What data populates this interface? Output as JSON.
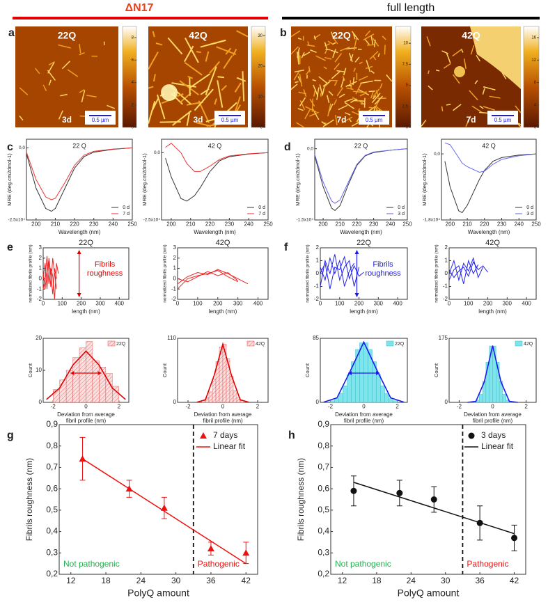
{
  "headers": [
    "ΔN17",
    "full length"
  ],
  "panel_letters": [
    "a",
    "b",
    "c",
    "d",
    "e",
    "f",
    "g",
    "h"
  ],
  "afm": [
    {
      "label": "22Q",
      "time": "3d",
      "scale": "0.5 µm",
      "colorbar_lim": [
        0,
        9
      ],
      "colorbar_ticks": [
        0,
        2,
        4,
        6,
        8
      ]
    },
    {
      "label": "42Q",
      "time": "3d",
      "scale": "0.5 µm",
      "colorbar_lim": [
        0,
        33
      ],
      "colorbar_ticks": [
        0,
        10,
        20,
        30
      ]
    },
    {
      "label": "22Q",
      "time": "7d",
      "scale": "0.5 µm",
      "colorbar_lim": [
        0,
        12
      ],
      "colorbar_ticks": [
        0,
        2.5,
        5,
        7.5,
        10
      ]
    },
    {
      "label": "42Q",
      "time": "7d",
      "scale": "0.5 µm",
      "colorbar_lim": [
        0,
        18
      ],
      "colorbar_ticks": [
        0,
        4,
        8,
        12,
        16
      ]
    }
  ],
  "chart_data": [
    {
      "type": "line",
      "title": "22 Q",
      "xlabel": "Wavelength (nm)",
      "ylabel": "MRE (deg.cm2dmol-1)",
      "x": [
        195,
        200,
        205,
        208,
        210,
        215,
        220,
        225,
        230,
        240,
        250
      ],
      "xlim": [
        195,
        250
      ],
      "xticks": [
        200,
        210,
        220,
        230,
        240,
        250
      ],
      "ylim": [
        -25000,
        3000
      ],
      "yticks": [
        {
          "value": 0,
          "label": "0,0"
        },
        {
          "value": -25000,
          "label": "-2,5x10⁴"
        }
      ],
      "series": [
        {
          "name": "0 d",
          "color": "#333333",
          "values": [
            -2000,
            -14000,
            -21000,
            -22000,
            -21000,
            -14000,
            -7000,
            -3000,
            -1500,
            -500,
            0
          ]
        },
        {
          "name": "7 d",
          "color": "#ee3333",
          "values": [
            -1500,
            -11000,
            -17000,
            -18000,
            -17500,
            -12000,
            -6000,
            -2500,
            -1200,
            -400,
            0
          ]
        }
      ]
    },
    {
      "type": "line",
      "title": "42 Q",
      "xlabel": "Wavelength (nm)",
      "ylabel": "MRE (deg.cm2dmol-1)",
      "x": [
        197,
        200,
        205,
        208,
        212,
        215,
        220,
        225,
        230,
        240,
        250
      ],
      "xlim": [
        195,
        250
      ],
      "xticks": [
        200,
        210,
        220,
        230,
        240,
        250
      ],
      "ylim": [
        -25000,
        5000
      ],
      "yticks": [
        {
          "value": 0,
          "label": "0,0"
        },
        {
          "value": -25000,
          "label": "-2,5x10⁴"
        }
      ],
      "series": [
        {
          "name": "0 d",
          "color": "#333333",
          "values": [
            -2000,
            -9000,
            -17000,
            -18000,
            -16000,
            -13000,
            -7000,
            -3000,
            -1500,
            -500,
            0
          ]
        },
        {
          "name": "7 d",
          "color": "#ee3333",
          "values": [
            2000,
            3500,
            0,
            -4000,
            -7000,
            -7000,
            -5000,
            -2500,
            -1200,
            -400,
            0
          ]
        }
      ]
    },
    {
      "type": "line",
      "title": "22 Q",
      "xlabel": "Wavelength (nm)",
      "ylabel": "MRE (deg.cm2dmol-1)",
      "x": [
        195,
        200,
        205,
        207,
        210,
        215,
        220,
        225,
        230,
        240,
        250
      ],
      "xlim": [
        195,
        250
      ],
      "xticks": [
        200,
        210,
        220,
        230,
        240,
        250
      ],
      "ylim": [
        -15000,
        2000
      ],
      "yticks": [
        {
          "value": 0,
          "label": "0,0"
        },
        {
          "value": -15000,
          "label": "-1,5x10⁴"
        }
      ],
      "series": [
        {
          "name": "0 d",
          "color": "#333333",
          "values": [
            -1500,
            -8000,
            -12500,
            -13000,
            -12000,
            -7500,
            -3500,
            -1500,
            -800,
            -300,
            0
          ]
        },
        {
          "name": "3 d",
          "color": "#6666ee",
          "values": [
            -1200,
            -7000,
            -11000,
            -11500,
            -10800,
            -7000,
            -3300,
            -1400,
            -700,
            -300,
            0
          ]
        }
      ]
    },
    {
      "type": "line",
      "title": "42 Q",
      "xlabel": "Wavelength (nm)",
      "ylabel": "MRE (deg.cm2dmol-1)",
      "x": [
        197,
        200,
        205,
        207,
        210,
        217,
        220,
        225,
        230,
        240,
        250
      ],
      "xlim": [
        195,
        250
      ],
      "xticks": [
        200,
        210,
        220,
        230,
        240,
        250
      ],
      "ylim": [
        -18000,
        4000
      ],
      "yticks": [
        {
          "value": 0,
          "label": "0,0"
        },
        {
          "value": -18000,
          "label": "-1,8x10⁴"
        }
      ],
      "series": [
        {
          "name": "0 d",
          "color": "#333333",
          "values": [
            -2000,
            -9000,
            -15500,
            -16000,
            -14000,
            -7000,
            -4500,
            -2000,
            -1000,
            -300,
            0
          ]
        },
        {
          "name": "3 d",
          "color": "#6666ee",
          "values": [
            3000,
            2500,
            -1000,
            -2500,
            -3500,
            -5000,
            -4700,
            -2800,
            -1500,
            -500,
            0
          ]
        }
      ]
    },
    {
      "type": "line",
      "title": "22Q",
      "xlabel": "length (nm)",
      "ylabel": "normalized fibrils profile (nm)",
      "annotation": [
        "Fibrils",
        "roughness"
      ],
      "annotation_color": "#e00000",
      "x": [
        0,
        10,
        20,
        30,
        40,
        50,
        60,
        70,
        80
      ],
      "xlim": [
        0,
        450
      ],
      "xticks": [
        0,
        100,
        200,
        300,
        400
      ],
      "ylim": [
        -2,
        3
      ],
      "yticks": [
        -2,
        -1,
        0,
        1,
        2,
        3
      ],
      "series": [
        {
          "color": "#ee2222",
          "values": [
            0,
            1.5,
            -1,
            2,
            0.5,
            -1.5,
            1,
            0,
            null
          ]
        },
        {
          "color": "#ee2222",
          "values": [
            -1,
            0,
            2.2,
            -0.5,
            1,
            0.3,
            -2,
            1.5,
            0.5
          ]
        },
        {
          "color": "#ee2222",
          "values": [
            0.5,
            -1,
            0.8,
            1.8,
            -0.8,
            2,
            0.5,
            -1,
            null
          ]
        }
      ]
    },
    {
      "type": "line",
      "title": "42Q",
      "xlabel": "length (nm)",
      "ylabel": "normalized fibrils profile (nm)",
      "x": [
        0,
        50,
        100,
        150,
        200,
        250,
        300,
        350
      ],
      "xlim": [
        0,
        450
      ],
      "xticks": [
        0,
        100,
        200,
        300,
        400
      ],
      "ylim": [
        -2,
        3
      ],
      "yticks": [
        -2,
        -1,
        0,
        1,
        2,
        3
      ],
      "series": [
        {
          "color": "#ee2222",
          "values": [
            -1,
            0,
            0.3,
            0.5,
            0.8,
            0.2,
            -0.3,
            null
          ]
        },
        {
          "color": "#ee2222",
          "values": [
            -0.5,
            0.2,
            0.6,
            0.4,
            0.9,
            0.5,
            0,
            -0.5
          ]
        },
        {
          "color": "#ee2222",
          "values": [
            0,
            -0.3,
            0.2,
            0.7,
            0.3,
            0.6,
            -0.2,
            null
          ]
        }
      ]
    },
    {
      "type": "line",
      "title": "22Q",
      "xlabel": "length (nm)",
      "ylabel": "normalized fibrils profile (nm)",
      "annotation": [
        "Fibrils",
        "roughness"
      ],
      "annotation_color": "#1a1aee",
      "x": [
        0,
        25,
        50,
        75,
        100,
        125,
        150,
        175,
        200,
        225
      ],
      "xlim": [
        0,
        450
      ],
      "xticks": [
        0,
        100,
        200,
        300,
        400
      ],
      "ylim": [
        -2,
        2
      ],
      "yticks": [
        -2,
        -1,
        0,
        1,
        2
      ],
      "series": [
        {
          "color": "#2222ee",
          "values": [
            -1,
            1,
            0,
            1.5,
            -0.5,
            0.5,
            1,
            -1,
            0.5,
            null
          ]
        },
        {
          "color": "#2222ee",
          "values": [
            0.5,
            -0.5,
            1.2,
            0,
            1,
            -1,
            0.2,
            0.8,
            null,
            null
          ]
        },
        {
          "color": "#2222ee",
          "values": [
            0,
            0.8,
            -1.2,
            0.5,
            0.3,
            1.3,
            -0.4,
            0.6,
            -0.2,
            0.1
          ]
        }
      ]
    },
    {
      "type": "line",
      "title": "42Q",
      "xlabel": "length (nm)",
      "ylabel": "normalized fibrils profile (nm)",
      "x": [
        0,
        25,
        50,
        75,
        100,
        125,
        150,
        175,
        200
      ],
      "xlim": [
        0,
        450
      ],
      "xticks": [
        0,
        100,
        200,
        300,
        400
      ],
      "ylim": [
        -2,
        2
      ],
      "yticks": [
        -2,
        -1,
        0,
        1,
        2
      ],
      "series": [
        {
          "color": "#2222ee",
          "values": [
            0,
            1,
            -0.5,
            0.8,
            0.2,
            1.2,
            -0.3,
            0.5,
            null
          ]
        },
        {
          "color": "#2222ee",
          "values": [
            -0.5,
            0.3,
            0.6,
            -0.8,
            1,
            0,
            0.7,
            null,
            null
          ]
        },
        {
          "color": "#2222ee",
          "values": [
            0.3,
            -0.3,
            0.2,
            0.5,
            -0.2,
            0.9,
            0.3,
            0.6,
            0.1
          ]
        }
      ]
    },
    {
      "type": "histogram",
      "name": "22Q",
      "xlabel": [
        "Deviation from average",
        "fibril profile (nm)"
      ],
      "ylabel": "Count",
      "color": "#f6c0c0",
      "edge": "#e04040",
      "fit_color": "#e00000",
      "bins": [
        -2,
        -1.6,
        -1.2,
        -0.8,
        -0.4,
        0,
        0.4,
        0.8,
        1.2,
        1.6,
        2
      ],
      "counts": [
        4,
        7,
        10,
        14,
        17,
        19,
        13,
        11,
        9,
        5
      ],
      "fit": {
        "x": [
          -2.4,
          -1.6,
          -0.8,
          0,
          0.8,
          1.6,
          2.4
        ],
        "values": [
          0.9,
          4.5,
          11.6,
          16,
          11.6,
          4.5,
          0.9
        ]
      },
      "xlim": [
        -2.6,
        2.6
      ],
      "xticks": [
        -2,
        0,
        2
      ],
      "ylim": [
        0,
        20
      ],
      "yticks": [
        0,
        10,
        20
      ]
    },
    {
      "type": "histogram",
      "name": "42Q",
      "xlabel": [
        "Deviation from average",
        "fibril profile (nm)"
      ],
      "ylabel": "Count",
      "color": "#f6c0c0",
      "edge": "#e04040",
      "fit_color": "#e00000",
      "bins": [
        -1.2,
        -1,
        -0.8,
        -0.6,
        -0.4,
        -0.2,
        0,
        0.2,
        0.4,
        0.6,
        0.8,
        1,
        1.2
      ],
      "counts": [
        3,
        8,
        18,
        40,
        70,
        95,
        100,
        75,
        45,
        20,
        8,
        3
      ],
      "fit": {
        "x": [
          -1.5,
          -1,
          -0.5,
          0,
          0.5,
          1,
          1.5
        ],
        "values": [
          0.1,
          4.4,
          46,
          100,
          46,
          4.4,
          0.1
        ]
      },
      "xlim": [
        -2.6,
        2.6
      ],
      "xticks": [
        -2,
        0,
        2
      ],
      "ylim": [
        0,
        110
      ],
      "yticks": [
        0,
        110
      ]
    },
    {
      "type": "histogram",
      "name": "22Q",
      "xlabel": [
        "Deviation from average",
        "fibril profile (nm)"
      ],
      "ylabel": "Count",
      "color": "#80e4ea",
      "edge": "#30b8c8",
      "fit_color": "#1a1aee",
      "bins": [
        -2,
        -1.75,
        -1.5,
        -1.25,
        -1,
        -0.75,
        -0.5,
        -0.25,
        0,
        0.25,
        0.5,
        0.75,
        1,
        1.25,
        1.5,
        1.75,
        2
      ],
      "counts": [
        2,
        5,
        12,
        22,
        37,
        54,
        70,
        79,
        79,
        70,
        54,
        37,
        22,
        12,
        5,
        2
      ],
      "fit": {
        "x": [
          -2.4,
          -1.6,
          -0.8,
          0,
          0.8,
          1.6,
          2.4
        ],
        "values": [
          0.2,
          6,
          42,
          80,
          42,
          6,
          0.2
        ]
      },
      "xlim": [
        -2.6,
        2.6
      ],
      "xticks": [
        -2,
        0,
        2
      ],
      "ylim": [
        0,
        85
      ],
      "yticks": [
        0,
        85
      ]
    },
    {
      "type": "histogram",
      "name": "42Q",
      "xlabel": [
        "Deviation from average",
        "fibril profile (nm)"
      ],
      "ylabel": "Count",
      "color": "#80e4ea",
      "edge": "#30b8c8",
      "fit_color": "#1a1aee",
      "bins": [
        -1.2,
        -1,
        -0.8,
        -0.6,
        -0.4,
        -0.2,
        0,
        0.2,
        0.4,
        0.6,
        0.8,
        1,
        1.2
      ],
      "counts": [
        1,
        6,
        22,
        58,
        110,
        154,
        154,
        110,
        58,
        22,
        6,
        1
      ],
      "fit": {
        "x": [
          -1.5,
          -1,
          -0.5,
          0,
          0.5,
          1,
          1.5
        ],
        "values": [
          0,
          2.6,
          56,
          155,
          56,
          2.6,
          0
        ]
      },
      "xlim": [
        -2.6,
        2.6
      ],
      "xticks": [
        -2,
        0,
        2
      ],
      "ylim": [
        0,
        175
      ],
      "yticks": [
        0,
        175
      ]
    },
    {
      "type": "scatter",
      "xlabel": "PolyQ amount",
      "ylabel": "Fibrils roughness (nm)",
      "x": [
        14,
        22,
        28,
        36,
        42
      ],
      "xlim": [
        10,
        44
      ],
      "xticks": [
        12,
        18,
        24,
        30,
        36,
        42
      ],
      "ylim": [
        0.2,
        0.9
      ],
      "yticks": [
        {
          "value": 0.2,
          "label": "0,2"
        },
        {
          "value": 0.3,
          "label": "0,3"
        },
        {
          "value": 0.4,
          "label": "0,4"
        },
        {
          "value": 0.5,
          "label": "0,5"
        },
        {
          "value": 0.6,
          "label": "0,6"
        },
        {
          "value": 0.7,
          "label": "0,7"
        },
        {
          "value": 0.8,
          "label": "0,8"
        },
        {
          "value": 0.9,
          "label": "0,9"
        }
      ],
      "series": [
        {
          "name": "7 days",
          "color": "#ee1111",
          "marker": "triangle",
          "values": [
            0.74,
            0.6,
            0.51,
            0.32,
            0.3
          ],
          "errors": [
            0.1,
            0.04,
            0.05,
            0.03,
            0.05
          ]
        }
      ],
      "fit": {
        "name": "Linear fit",
        "color": "#ee1111",
        "x": [
          14,
          42
        ],
        "values": [
          0.74,
          0.25
        ]
      },
      "threshold": 33,
      "annotations": [
        {
          "text": "Not pathogenic",
          "color": "#22b14c"
        },
        {
          "text": "Pathogenic",
          "color": "#ee1111"
        }
      ]
    },
    {
      "type": "scatter",
      "xlabel": "PolyQ amount",
      "ylabel": "Fibrils roughness (nm)",
      "x": [
        14,
        22,
        28,
        36,
        42
      ],
      "xlim": [
        10,
        44
      ],
      "xticks": [
        12,
        18,
        24,
        30,
        36,
        42
      ],
      "ylim": [
        0.2,
        0.9
      ],
      "yticks": [
        {
          "value": 0.2,
          "label": "0,2"
        },
        {
          "value": 0.3,
          "label": "0,3"
        },
        {
          "value": 0.4,
          "label": "0,4"
        },
        {
          "value": 0.5,
          "label": "0,5"
        },
        {
          "value": 0.6,
          "label": "0,6"
        },
        {
          "value": 0.7,
          "label": "0,7"
        },
        {
          "value": 0.8,
          "label": "0,8"
        },
        {
          "value": 0.9,
          "label": "0,9"
        }
      ],
      "series": [
        {
          "name": "3 days",
          "color": "#111111",
          "marker": "circle",
          "values": [
            0.59,
            0.58,
            0.55,
            0.44,
            0.37
          ],
          "errors": [
            0.07,
            0.06,
            0.06,
            0.08,
            0.06
          ]
        }
      ],
      "fit": {
        "name": "Linear fit",
        "color": "#111111",
        "x": [
          14,
          42
        ],
        "values": [
          0.63,
          0.39
        ]
      },
      "threshold": 33,
      "annotations": [
        {
          "text": "Not pathogenic",
          "color": "#22b14c"
        },
        {
          "text": "Pathogenic",
          "color": "#ee1111"
        }
      ]
    }
  ]
}
